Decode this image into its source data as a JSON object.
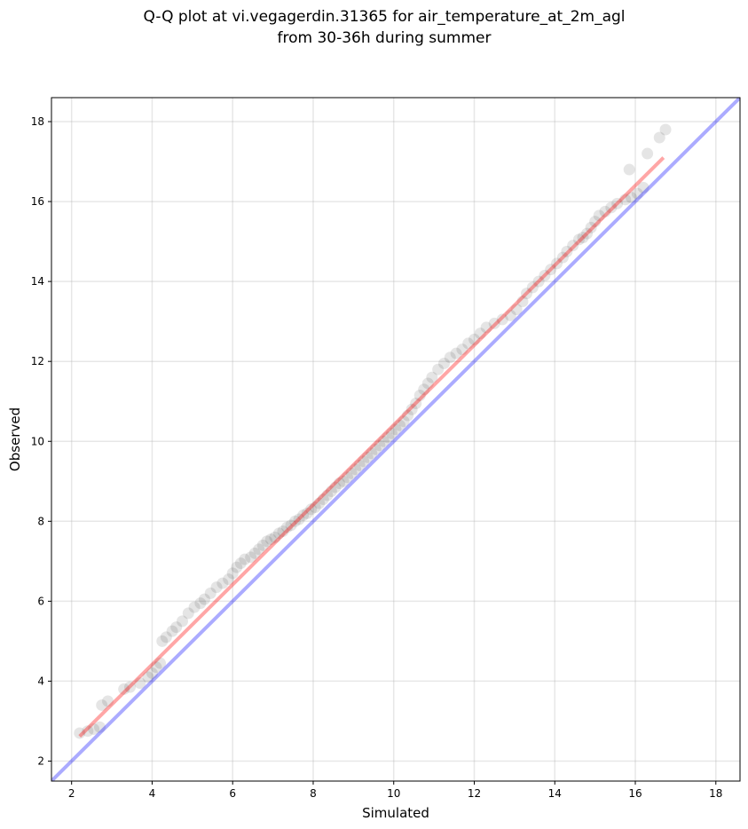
{
  "chart_data": {
    "type": "scatter",
    "title_line1": "Q-Q plot at vi.vegagerdin.31365 for air_temperature_at_2m_agl",
    "title_line2": "from 30-36h during summer",
    "xlabel": "Simulated",
    "ylabel": "Observed",
    "xlim": [
      1.5,
      18.6
    ],
    "ylim": [
      1.5,
      18.6
    ],
    "xticks": [
      "2",
      "4",
      "6",
      "8",
      "10",
      "12",
      "14",
      "16",
      "18"
    ],
    "yticks": [
      "2",
      "4",
      "6",
      "8",
      "10",
      "12",
      "14",
      "16",
      "18"
    ],
    "grid": true,
    "series": [
      {
        "kind": "points",
        "color": "#000000",
        "opacity": 0.1,
        "points": [
          [
            2.2,
            2.7
          ],
          [
            2.4,
            2.75
          ],
          [
            2.55,
            2.8
          ],
          [
            2.7,
            2.85
          ],
          [
            2.75,
            3.4
          ],
          [
            2.9,
            3.5
          ],
          [
            3.3,
            3.8
          ],
          [
            3.45,
            3.85
          ],
          [
            3.7,
            3.95
          ],
          [
            3.9,
            4.1
          ],
          [
            4.0,
            4.2
          ],
          [
            4.1,
            4.35
          ],
          [
            4.2,
            4.45
          ],
          [
            4.25,
            5.0
          ],
          [
            4.35,
            5.1
          ],
          [
            4.5,
            5.25
          ],
          [
            4.6,
            5.35
          ],
          [
            4.75,
            5.5
          ],
          [
            4.9,
            5.7
          ],
          [
            5.05,
            5.85
          ],
          [
            5.2,
            5.95
          ],
          [
            5.3,
            6.05
          ],
          [
            5.45,
            6.2
          ],
          [
            5.6,
            6.35
          ],
          [
            5.75,
            6.45
          ],
          [
            5.9,
            6.55
          ],
          [
            6.0,
            6.7
          ],
          [
            6.1,
            6.85
          ],
          [
            6.2,
            6.95
          ],
          [
            6.3,
            7.05
          ],
          [
            6.45,
            7.1
          ],
          [
            6.55,
            7.2
          ],
          [
            6.65,
            7.3
          ],
          [
            6.75,
            7.4
          ],
          [
            6.85,
            7.5
          ],
          [
            6.95,
            7.55
          ],
          [
            7.05,
            7.6
          ],
          [
            7.15,
            7.7
          ],
          [
            7.25,
            7.75
          ],
          [
            7.35,
            7.85
          ],
          [
            7.45,
            7.9
          ],
          [
            7.55,
            8.0
          ],
          [
            7.65,
            8.05
          ],
          [
            7.75,
            8.15
          ],
          [
            7.85,
            8.2
          ],
          [
            7.95,
            8.3
          ],
          [
            8.05,
            8.35
          ],
          [
            8.15,
            8.45
          ],
          [
            8.25,
            8.55
          ],
          [
            8.35,
            8.65
          ],
          [
            8.45,
            8.75
          ],
          [
            8.55,
            8.85
          ],
          [
            8.65,
            8.95
          ],
          [
            8.75,
            9.0
          ],
          [
            8.85,
            9.1
          ],
          [
            8.95,
            9.2
          ],
          [
            9.05,
            9.3
          ],
          [
            9.15,
            9.4
          ],
          [
            9.25,
            9.5
          ],
          [
            9.35,
            9.6
          ],
          [
            9.45,
            9.7
          ],
          [
            9.55,
            9.8
          ],
          [
            9.65,
            9.9
          ],
          [
            9.75,
            10.0
          ],
          [
            9.85,
            10.1
          ],
          [
            9.95,
            10.2
          ],
          [
            10.05,
            10.3
          ],
          [
            10.15,
            10.4
          ],
          [
            10.25,
            10.5
          ],
          [
            10.35,
            10.65
          ],
          [
            10.45,
            10.8
          ],
          [
            10.55,
            10.95
          ],
          [
            10.65,
            11.15
          ],
          [
            10.75,
            11.3
          ],
          [
            10.85,
            11.45
          ],
          [
            10.95,
            11.6
          ],
          [
            11.1,
            11.8
          ],
          [
            11.25,
            11.95
          ],
          [
            11.4,
            12.1
          ],
          [
            11.55,
            12.2
          ],
          [
            11.7,
            12.3
          ],
          [
            11.85,
            12.45
          ],
          [
            12.0,
            12.55
          ],
          [
            12.15,
            12.7
          ],
          [
            12.3,
            12.85
          ],
          [
            12.5,
            12.95
          ],
          [
            12.7,
            13.05
          ],
          [
            12.9,
            13.15
          ],
          [
            13.05,
            13.3
          ],
          [
            13.2,
            13.5
          ],
          [
            13.3,
            13.7
          ],
          [
            13.45,
            13.85
          ],
          [
            13.6,
            14.0
          ],
          [
            13.75,
            14.15
          ],
          [
            13.9,
            14.3
          ],
          [
            14.05,
            14.45
          ],
          [
            14.2,
            14.6
          ],
          [
            14.3,
            14.75
          ],
          [
            14.45,
            14.9
          ],
          [
            14.6,
            15.05
          ],
          [
            14.7,
            15.1
          ],
          [
            14.8,
            15.2
          ],
          [
            14.9,
            15.35
          ],
          [
            15.0,
            15.5
          ],
          [
            15.1,
            15.65
          ],
          [
            15.25,
            15.75
          ],
          [
            15.4,
            15.85
          ],
          [
            15.55,
            15.95
          ],
          [
            15.75,
            16.05
          ],
          [
            15.9,
            16.1
          ],
          [
            16.05,
            16.2
          ],
          [
            16.2,
            16.35
          ],
          [
            15.85,
            16.8
          ],
          [
            16.3,
            17.2
          ],
          [
            16.6,
            17.6
          ],
          [
            16.75,
            17.8
          ]
        ]
      },
      {
        "kind": "line",
        "name_shown": false,
        "color": "#ff0000",
        "opacity": 0.35,
        "from": [
          2.2,
          2.62
        ],
        "to": [
          16.7,
          17.1
        ]
      },
      {
        "kind": "line",
        "name_shown": false,
        "color": "#0000ff",
        "opacity": 0.33,
        "from": [
          1.5,
          1.5
        ],
        "to": [
          18.6,
          18.6
        ]
      }
    ]
  }
}
